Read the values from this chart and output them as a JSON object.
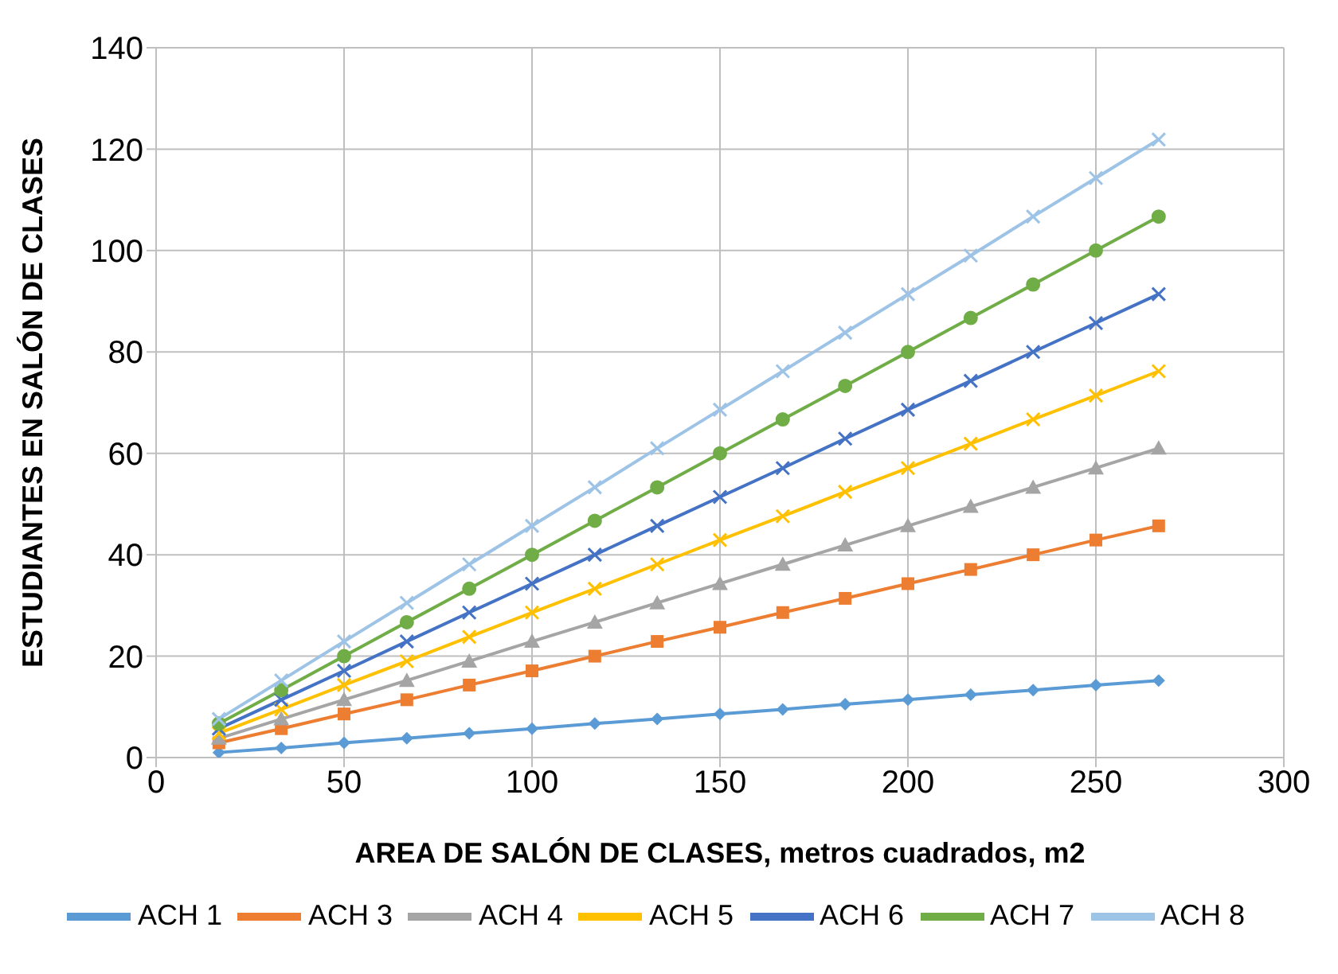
{
  "chart_data": {
    "type": "line",
    "xlabel": "AREA DE SALÓN DE CLASES, metros cuadrados, m2",
    "ylabel": "ESTUDIANTES EN SALÓN DE CLASES",
    "x": [
      16.7,
      33.3,
      50,
      66.7,
      83.3,
      100,
      116.7,
      133.3,
      150,
      166.7,
      183.3,
      200,
      216.7,
      233.3,
      250,
      266.7
    ],
    "xlim": [
      0,
      300
    ],
    "xticks": [
      0,
      50,
      100,
      150,
      200,
      250,
      300
    ],
    "ylim": [
      0,
      140
    ],
    "yticks": [
      0,
      20,
      40,
      60,
      80,
      100,
      120,
      140
    ],
    "grid": true,
    "legend": "bottom",
    "line_style": "solid",
    "series": [
      {
        "name": "ACH 1",
        "color": "#5b9bd5",
        "marker": "diamond",
        "values": [
          1.0,
          1.9,
          2.9,
          3.8,
          4.8,
          5.7,
          6.7,
          7.6,
          8.6,
          9.5,
          10.5,
          11.4,
          12.4,
          13.3,
          14.3,
          15.2
        ]
      },
      {
        "name": "ACH 3",
        "color": "#ed7d31",
        "marker": "square",
        "values": [
          2.9,
          5.7,
          8.6,
          11.4,
          14.3,
          17.1,
          20,
          22.9,
          25.7,
          28.6,
          31.4,
          34.3,
          37.1,
          40,
          42.9,
          45.7
        ]
      },
      {
        "name": "ACH 4",
        "color": "#a5a5a5",
        "marker": "triangle",
        "values": [
          3.8,
          7.6,
          11.4,
          15.2,
          19,
          22.9,
          26.7,
          30.5,
          34.3,
          38.1,
          41.9,
          45.7,
          49.5,
          53.3,
          57.1,
          61
        ]
      },
      {
        "name": "ACH 5",
        "color": "#ffc000",
        "marker": "cross",
        "values": [
          4.8,
          9.5,
          14.3,
          19,
          23.8,
          28.6,
          33.3,
          38.1,
          42.9,
          47.6,
          52.4,
          57.1,
          61.9,
          66.7,
          71.4,
          76.2
        ]
      },
      {
        "name": "ACH 6",
        "color": "#4472c4",
        "marker": "cross",
        "values": [
          5.7,
          11.4,
          17.1,
          22.9,
          28.6,
          34.3,
          40,
          45.7,
          51.4,
          57.1,
          62.9,
          68.6,
          74.3,
          80,
          85.7,
          91.4
        ]
      },
      {
        "name": "ACH 7",
        "color": "#70ad47",
        "marker": "circle",
        "values": [
          6.7,
          13.3,
          20,
          26.7,
          33.3,
          40,
          46.7,
          53.3,
          60,
          66.7,
          73.3,
          80,
          86.7,
          93.3,
          100,
          106.7
        ]
      },
      {
        "name": "ACH 8",
        "color": "#9dc3e6",
        "marker": "cross",
        "values": [
          7.6,
          15.2,
          22.9,
          30.5,
          38.1,
          45.7,
          53.3,
          61,
          68.6,
          76.2,
          83.8,
          91.4,
          99,
          106.7,
          114.3,
          121.9
        ]
      }
    ]
  }
}
